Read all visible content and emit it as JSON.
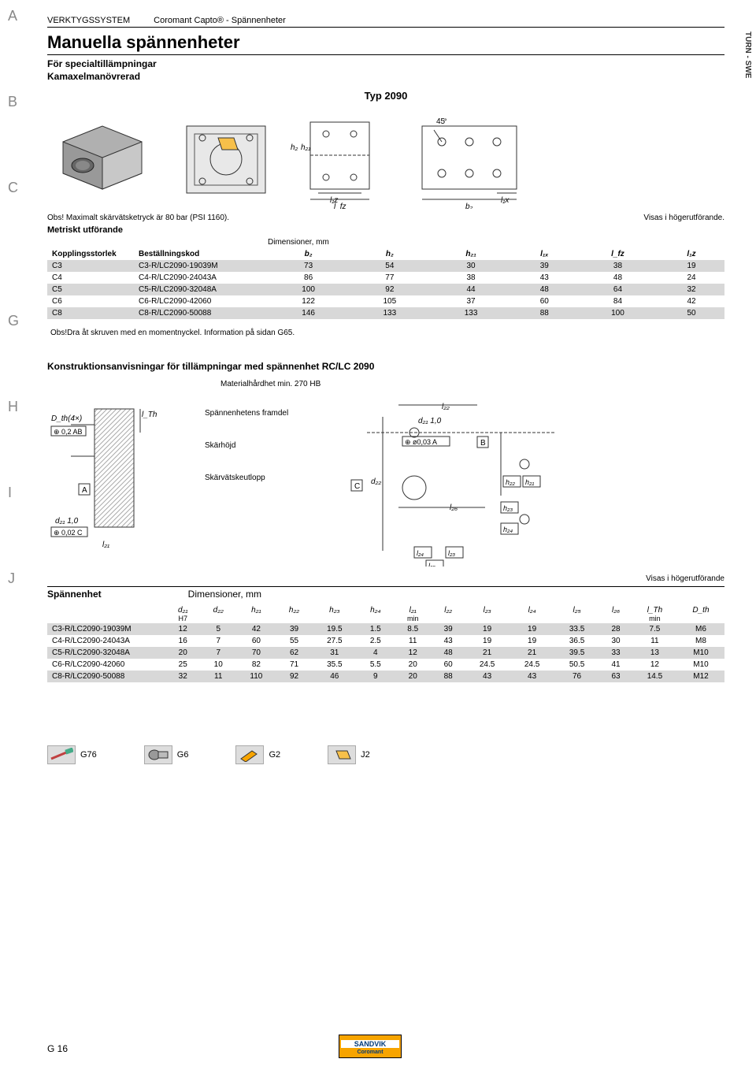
{
  "sideTabs": [
    "A",
    "B",
    "C",
    "G",
    "H",
    "I",
    "J"
  ],
  "verticalLabel": "TURN - SWE",
  "header": {
    "category": "VERKTYGSSYSTEM",
    "sub": "Coromant Capto® - Spännenheter"
  },
  "title": "Manuella spännenheter",
  "subtitle1": "För specialtillämpningar",
  "subtitle2": "Kamaxelmanövrerad",
  "typLabel": "Typ 2090",
  "noteLeft": "Obs! Maximalt skärvätsketryck är 80 bar (PSI 1160).",
  "noteRight": "Visas i högerutförande.",
  "metricLabel": "Metriskt utförande",
  "dimHeader1": "Dimensioner, mm",
  "table1": {
    "columns": [
      "Kopplingsstorlek",
      "Beställningskod",
      "b₂",
      "h₂",
      "h₂₁",
      "l₁ₓ",
      "l_fz",
      "l₁z"
    ],
    "rows": [
      [
        "C3",
        "C3-R/LC2090-19039M",
        "73",
        "54",
        "30",
        "39",
        "38",
        "19"
      ],
      [
        "C4",
        "C4-R/LC2090-24043A",
        "86",
        "77",
        "38",
        "43",
        "48",
        "24"
      ],
      [
        "C5",
        "C5-R/LC2090-32048A",
        "100",
        "92",
        "44",
        "48",
        "64",
        "32"
      ],
      [
        "C6",
        "C6-R/LC2090-42060",
        "122",
        "105",
        "37",
        "60",
        "84",
        "42"
      ],
      [
        "C8",
        "C8-R/LC2090-50088",
        "146",
        "133",
        "133",
        "88",
        "100",
        "50"
      ]
    ]
  },
  "obsNote": "Obs!Dra åt skruven med en momentnyckel. Information på sidan G65.",
  "constructTitle": "Konstruktionsanvisningar för tillämpningar med spännenhet RC/LC 2090",
  "materialNote": "Materialhårdhet min. 270 HB",
  "labelsCol": [
    "Spännenhetens framdel",
    "Skärhöjd",
    "Skärvätskeutlopp"
  ],
  "rightNote2": "Visas i högerutförande",
  "spTitle": "Spännenhet",
  "dimHeader2": "Dimensioner, mm",
  "table2": {
    "columns": [
      {
        "top": "",
        "bot": ""
      },
      {
        "top": "d₂₁",
        "bot": "H7"
      },
      {
        "top": "d₂₂",
        "bot": ""
      },
      {
        "top": "h₂₁",
        "bot": ""
      },
      {
        "top": "h₂₂",
        "bot": ""
      },
      {
        "top": "h₂₃",
        "bot": ""
      },
      {
        "top": "h₂₄",
        "bot": ""
      },
      {
        "top": "l₂₁",
        "bot": "min"
      },
      {
        "top": "l₂₂",
        "bot": ""
      },
      {
        "top": "l₂₃",
        "bot": ""
      },
      {
        "top": "l₂₄",
        "bot": ""
      },
      {
        "top": "l₂₅",
        "bot": ""
      },
      {
        "top": "l₂₆",
        "bot": ""
      },
      {
        "top": "l_Th",
        "bot": "min"
      },
      {
        "top": "D_th",
        "bot": ""
      }
    ],
    "rows": [
      [
        "C3-R/LC2090-19039M",
        "12",
        "5",
        "42",
        "39",
        "19.5",
        "1.5",
        "8.5",
        "39",
        "19",
        "19",
        "33.5",
        "28",
        "7.5",
        "M6"
      ],
      [
        "C4-R/LC2090-24043A",
        "16",
        "7",
        "60",
        "55",
        "27.5",
        "2.5",
        "11",
        "43",
        "19",
        "19",
        "36.5",
        "30",
        "11",
        "M8"
      ],
      [
        "C5-R/LC2090-32048A",
        "20",
        "7",
        "70",
        "62",
        "31",
        "4",
        "12",
        "48",
        "21",
        "21",
        "39.5",
        "33",
        "13",
        "M10"
      ],
      [
        "C6-R/LC2090-42060",
        "25",
        "10",
        "82",
        "71",
        "35.5",
        "5.5",
        "20",
        "60",
        "24.5",
        "24.5",
        "50.5",
        "41",
        "12",
        "M10"
      ],
      [
        "C8-R/LC2090-50088",
        "32",
        "11",
        "110",
        "92",
        "46",
        "9",
        "20",
        "88",
        "43",
        "43",
        "76",
        "63",
        "14.5",
        "M12"
      ]
    ]
  },
  "footerRefs": [
    "G76",
    "G6",
    "G2",
    "J2"
  ],
  "pageNum": "G 16",
  "logo": {
    "top": "SANDVIK",
    "bot": "Coromant"
  },
  "diagramLabels": {
    "angle45": "45",
    "h2": "h₂",
    "h21": "h₂₁",
    "l1z": "l₁z",
    "lfz": "l_fz",
    "l1x": "l₁x",
    "b2": "b₂",
    "Dth": "D_th(4×)",
    "tol1": "⊕ 0,2 AB",
    "lTh": "l_Th",
    "A": "A",
    "B": "B",
    "C": "C",
    "d21": "d₂₁ 1,0",
    "tol2": "⊕ 0,02 C",
    "l21": "l₂₁",
    "l22": "l₂₂",
    "d21b": "d₂₁ 1,0",
    "tol3": "⊕ ø0,03 A",
    "d22": "d₂₂",
    "h22": "h₂₂",
    "h21b": "h₂₁",
    "l26": "l₂₆",
    "h23": "h₂₃",
    "h24": "h₂₄",
    "l24": "l₂₄",
    "l23": "l₂₃",
    "l25": "l₂₅"
  },
  "colors": {
    "rowShade": "#d8d8d8",
    "sideTab": "#888888",
    "logoBg": "#f7a400",
    "logoText": "#003a7a"
  }
}
